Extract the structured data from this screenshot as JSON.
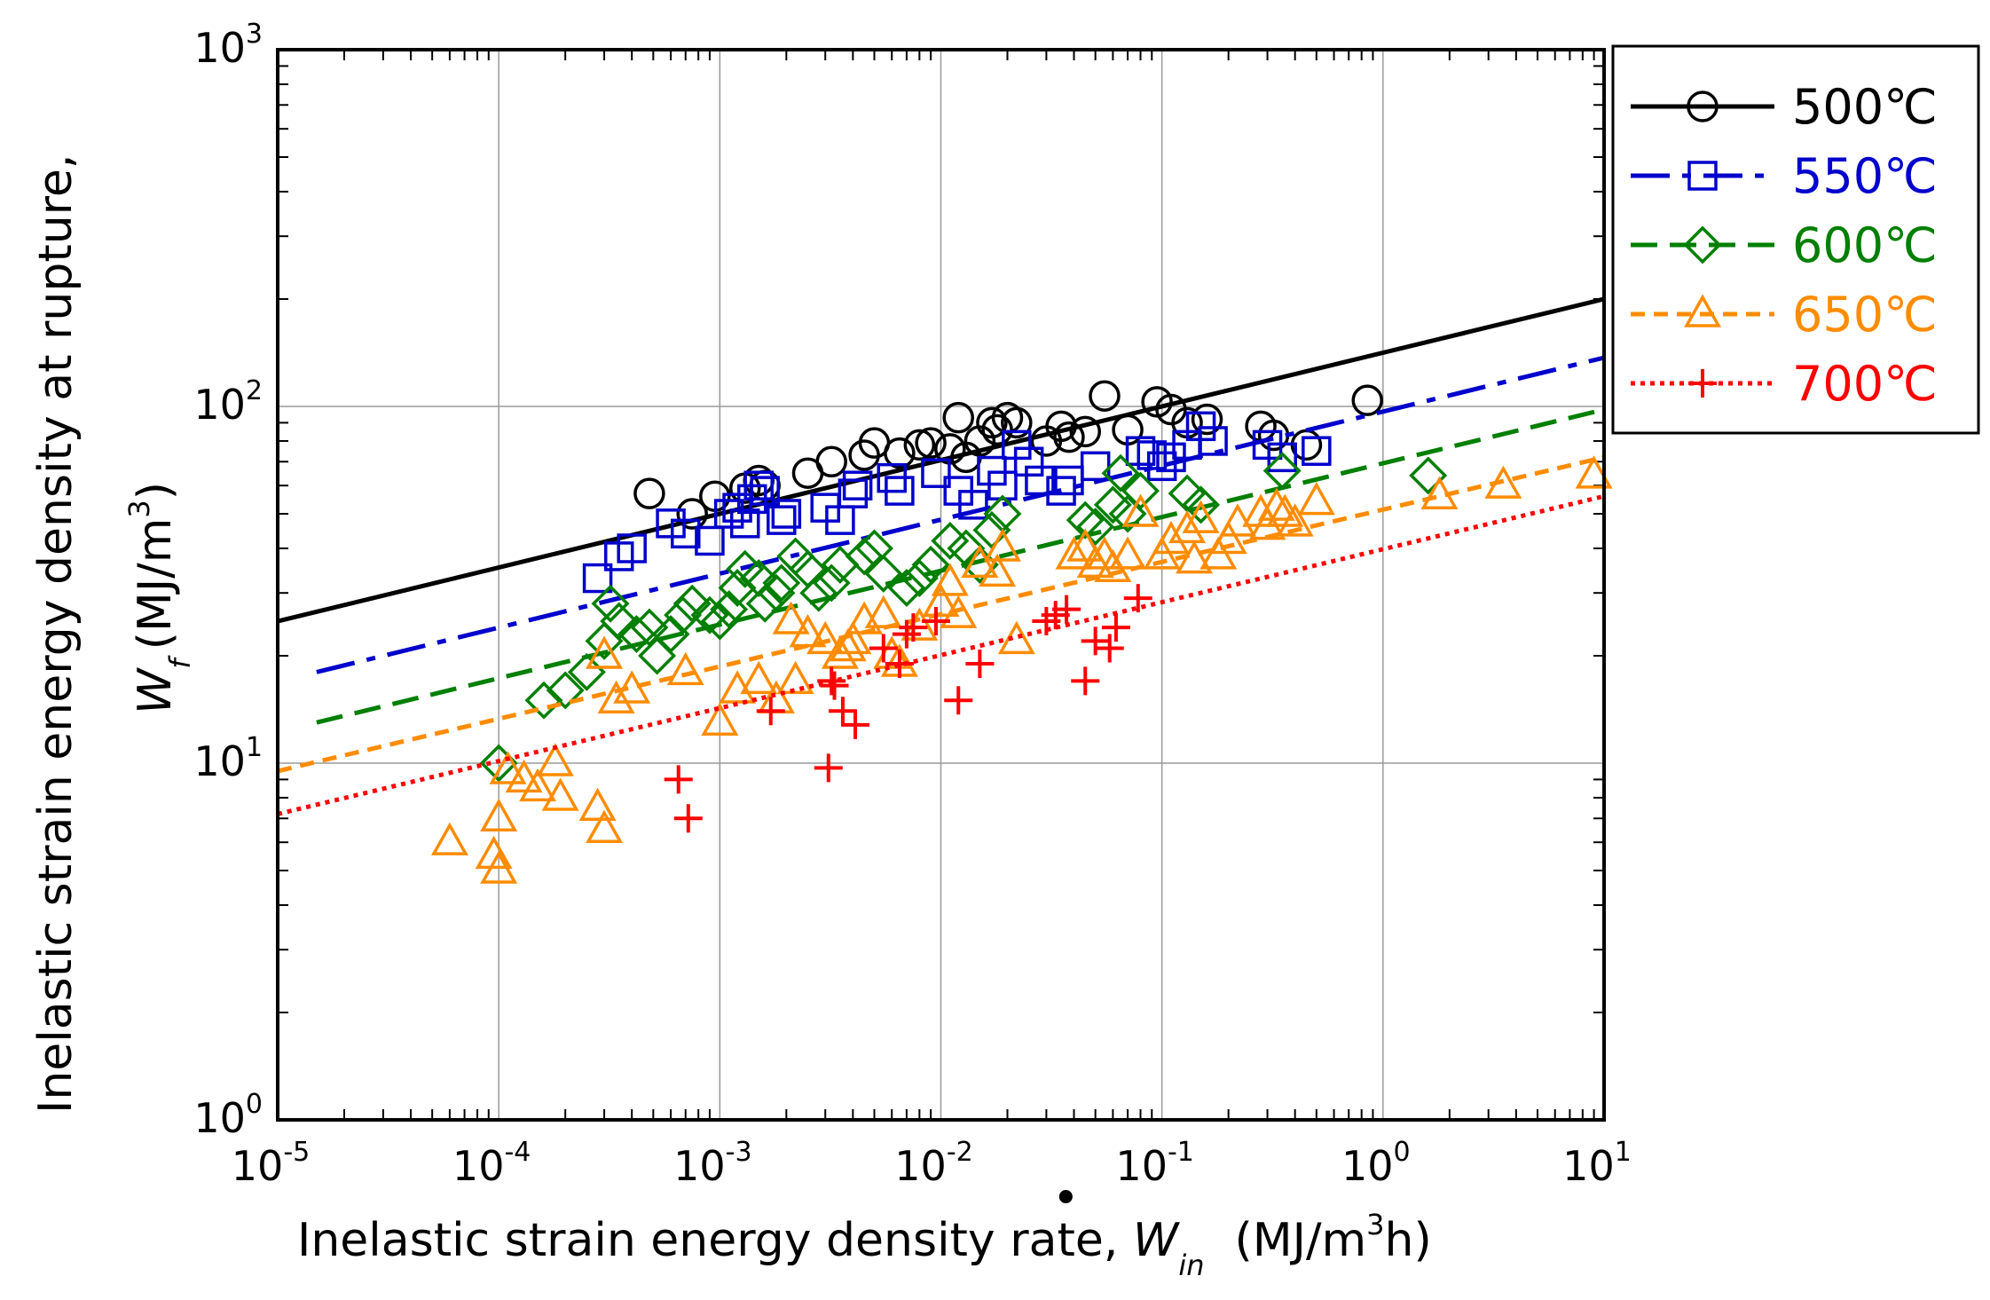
{
  "chart_data": {
    "type": "scatter",
    "xscale": "log",
    "yscale": "log",
    "xlim": [
      1e-05,
      10
    ],
    "ylim": [
      1,
      1000
    ],
    "grid": true,
    "legend_position": "outside-top-right",
    "x_ticks": [
      {
        "base": "10",
        "exp": "-5"
      },
      {
        "base": "10",
        "exp": "-4"
      },
      {
        "base": "10",
        "exp": "-3"
      },
      {
        "base": "10",
        "exp": "-2"
      },
      {
        "base": "10",
        "exp": "-1"
      },
      {
        "base": "10",
        "exp": "0"
      },
      {
        "base": "10",
        "exp": "1"
      }
    ],
    "y_ticks": [
      {
        "base": "10",
        "exp": "0"
      },
      {
        "base": "10",
        "exp": "1"
      },
      {
        "base": "10",
        "exp": "2"
      },
      {
        "base": "10",
        "exp": "3"
      }
    ],
    "xlabel": {
      "main": "Inelastic strain energy density rate, ",
      "symbol": "W",
      "sub": "in",
      "unit_pre": "(MJ/m",
      "unit_sup": "3",
      "unit_post": "h)"
    },
    "ylabel": {
      "line1": "Inelastic strain energy density at rupture,",
      "symbol": "W",
      "sub": "f",
      "unit_pre": "(MJ/m",
      "unit_sup": "3",
      "unit_post": ")"
    },
    "series": [
      {
        "name": "500℃",
        "color": "#000000",
        "marker": "circle",
        "line_style": "solid",
        "fit": {
          "x": [
            1e-05,
            10
          ],
          "y": [
            25,
            200
          ]
        },
        "points": [
          [
            0.00048,
            57
          ],
          [
            0.00075,
            50
          ],
          [
            0.00095,
            56
          ],
          [
            0.0013,
            59
          ],
          [
            0.0015,
            62
          ],
          [
            0.0016,
            60
          ],
          [
            0.0025,
            65
          ],
          [
            0.0032,
            70
          ],
          [
            0.0045,
            73
          ],
          [
            0.005,
            79
          ],
          [
            0.0065,
            74
          ],
          [
            0.008,
            78
          ],
          [
            0.009,
            79
          ],
          [
            0.011,
            76
          ],
          [
            0.012,
            93
          ],
          [
            0.013,
            72
          ],
          [
            0.015,
            80
          ],
          [
            0.017,
            90
          ],
          [
            0.018,
            86
          ],
          [
            0.02,
            93
          ],
          [
            0.022,
            90
          ],
          [
            0.03,
            80
          ],
          [
            0.035,
            88
          ],
          [
            0.038,
            82
          ],
          [
            0.045,
            85
          ],
          [
            0.055,
            107
          ],
          [
            0.07,
            86
          ],
          [
            0.095,
            103
          ],
          [
            0.11,
            98
          ],
          [
            0.13,
            90
          ],
          [
            0.16,
            92
          ],
          [
            0.28,
            88
          ],
          [
            0.32,
            83
          ],
          [
            0.45,
            78
          ],
          [
            0.85,
            104
          ]
        ]
      },
      {
        "name": "550℃",
        "color": "#0000cc",
        "marker": "square",
        "line_style": "dashdot",
        "fit": {
          "x": [
            1.5e-05,
            10
          ],
          "y": [
            18,
            137
          ]
        },
        "points": [
          [
            0.00028,
            33
          ],
          [
            0.00035,
            38
          ],
          [
            0.0004,
            40
          ],
          [
            0.0006,
            47
          ],
          [
            0.0007,
            44
          ],
          [
            0.0009,
            42
          ],
          [
            0.0011,
            50
          ],
          [
            0.0012,
            52
          ],
          [
            0.0013,
            47
          ],
          [
            0.0014,
            55
          ],
          [
            0.0015,
            60
          ],
          [
            0.0016,
            58
          ],
          [
            0.0019,
            48
          ],
          [
            0.002,
            50
          ],
          [
            0.003,
            52
          ],
          [
            0.0035,
            48
          ],
          [
            0.004,
            57
          ],
          [
            0.0042,
            60
          ],
          [
            0.006,
            63
          ],
          [
            0.0065,
            58
          ],
          [
            0.0095,
            65
          ],
          [
            0.012,
            58
          ],
          [
            0.014,
            53
          ],
          [
            0.017,
            66
          ],
          [
            0.019,
            60
          ],
          [
            0.022,
            78
          ],
          [
            0.025,
            70
          ],
          [
            0.028,
            62
          ],
          [
            0.035,
            58
          ],
          [
            0.038,
            62
          ],
          [
            0.05,
            68
          ],
          [
            0.08,
            75
          ],
          [
            0.09,
            73
          ],
          [
            0.1,
            68
          ],
          [
            0.11,
            72
          ],
          [
            0.13,
            78
          ],
          [
            0.15,
            88
          ],
          [
            0.17,
            80
          ],
          [
            0.3,
            78
          ],
          [
            0.35,
            72
          ],
          [
            0.5,
            75
          ]
        ]
      },
      {
        "name": "600℃",
        "color": "#007f00",
        "marker": "diamond",
        "line_style": "dashed",
        "fit": {
          "x": [
            1.5e-05,
            10
          ],
          "y": [
            13,
            98
          ]
        },
        "points": [
          [
            0.0001,
            10
          ],
          [
            0.00016,
            15
          ],
          [
            0.0002,
            16
          ],
          [
            0.00025,
            18
          ],
          [
            0.0003,
            22
          ],
          [
            0.00032,
            28
          ],
          [
            0.00035,
            25
          ],
          [
            0.00042,
            23
          ],
          [
            0.00048,
            24
          ],
          [
            0.00052,
            20
          ],
          [
            0.0006,
            23
          ],
          [
            0.00068,
            26
          ],
          [
            0.00075,
            28
          ],
          [
            0.0009,
            26
          ],
          [
            0.001,
            25
          ],
          [
            0.0011,
            27
          ],
          [
            0.0012,
            31
          ],
          [
            0.0013,
            35
          ],
          [
            0.0015,
            33
          ],
          [
            0.0016,
            28
          ],
          [
            0.0018,
            30
          ],
          [
            0.0019,
            32
          ],
          [
            0.0022,
            38
          ],
          [
            0.0025,
            35
          ],
          [
            0.0028,
            30
          ],
          [
            0.0032,
            32
          ],
          [
            0.0035,
            36
          ],
          [
            0.0045,
            38
          ],
          [
            0.005,
            40
          ],
          [
            0.0055,
            34
          ],
          [
            0.007,
            31
          ],
          [
            0.008,
            33
          ],
          [
            0.009,
            36
          ],
          [
            0.011,
            42
          ],
          [
            0.013,
            40
          ],
          [
            0.015,
            36
          ],
          [
            0.017,
            45
          ],
          [
            0.019,
            50
          ],
          [
            0.045,
            48
          ],
          [
            0.05,
            46
          ],
          [
            0.06,
            53
          ],
          [
            0.065,
            65
          ],
          [
            0.07,
            50
          ],
          [
            0.08,
            58
          ],
          [
            0.13,
            57
          ],
          [
            0.15,
            53
          ],
          [
            0.35,
            66
          ],
          [
            1.6,
            64
          ]
        ]
      },
      {
        "name": "650℃",
        "color": "#ff8c00",
        "marker": "triangle",
        "line_style": "short-dashed",
        "fit": {
          "x": [
            1e-05,
            10
          ],
          "y": [
            9.5,
            72
          ]
        },
        "points": [
          [
            6e-05,
            6
          ],
          [
            9.5e-05,
            5.5
          ],
          [
            0.0001,
            7
          ],
          [
            0.0001,
            5
          ],
          [
            0.00011,
            9.5
          ],
          [
            0.00013,
            9
          ],
          [
            0.00015,
            8.5
          ],
          [
            0.00018,
            10
          ],
          [
            0.00019,
            8
          ],
          [
            0.00028,
            7.5
          ],
          [
            0.0003,
            6.5
          ],
          [
            0.0003,
            20
          ],
          [
            0.00034,
            15
          ],
          [
            0.0004,
            16
          ],
          [
            0.0007,
            18
          ],
          [
            0.001,
            13
          ],
          [
            0.0012,
            16
          ],
          [
            0.0015,
            17
          ],
          [
            0.0018,
            15
          ],
          [
            0.0021,
            25
          ],
          [
            0.0022,
            17
          ],
          [
            0.0025,
            23
          ],
          [
            0.003,
            22
          ],
          [
            0.0035,
            20
          ],
          [
            0.0038,
            21
          ],
          [
            0.004,
            22
          ],
          [
            0.0045,
            25
          ],
          [
            0.0055,
            26
          ],
          [
            0.006,
            20
          ],
          [
            0.0065,
            19
          ],
          [
            0.008,
            24
          ],
          [
            0.01,
            28
          ],
          [
            0.011,
            32
          ],
          [
            0.012,
            26
          ],
          [
            0.015,
            36
          ],
          [
            0.018,
            34
          ],
          [
            0.019,
            40
          ],
          [
            0.022,
            22
          ],
          [
            0.04,
            38
          ],
          [
            0.045,
            40
          ],
          [
            0.05,
            36
          ],
          [
            0.055,
            38
          ],
          [
            0.06,
            35
          ],
          [
            0.07,
            38
          ],
          [
            0.08,
            50
          ],
          [
            0.1,
            38
          ],
          [
            0.11,
            42
          ],
          [
            0.13,
            45
          ],
          [
            0.14,
            37
          ],
          [
            0.15,
            48
          ],
          [
            0.18,
            38
          ],
          [
            0.2,
            42
          ],
          [
            0.22,
            47
          ],
          [
            0.28,
            50
          ],
          [
            0.3,
            46
          ],
          [
            0.33,
            52
          ],
          [
            0.36,
            50
          ],
          [
            0.4,
            47
          ],
          [
            0.5,
            54
          ],
          [
            1.8,
            56
          ],
          [
            3.5,
            60
          ],
          [
            9,
            64
          ]
        ]
      },
      {
        "name": "700℃",
        "color": "#ff0000",
        "marker": "plus",
        "line_style": "dotted",
        "fit": {
          "x": [
            1e-05,
            10
          ],
          "y": [
            7.2,
            56
          ]
        },
        "points": [
          [
            0.00065,
            9
          ],
          [
            0.00072,
            7
          ],
          [
            0.0017,
            14
          ],
          [
            0.0031,
            9.7
          ],
          [
            0.0032,
            17
          ],
          [
            0.0033,
            16.5
          ],
          [
            0.0036,
            14
          ],
          [
            0.0041,
            12.8
          ],
          [
            0.0055,
            21
          ],
          [
            0.0065,
            19
          ],
          [
            0.007,
            23
          ],
          [
            0.0075,
            24
          ],
          [
            0.0095,
            25
          ],
          [
            0.012,
            15
          ],
          [
            0.015,
            19
          ],
          [
            0.03,
            25
          ],
          [
            0.033,
            26
          ],
          [
            0.037,
            27
          ],
          [
            0.045,
            17
          ],
          [
            0.05,
            22
          ],
          [
            0.058,
            21
          ],
          [
            0.062,
            24
          ],
          [
            0.078,
            29
          ]
        ]
      }
    ]
  }
}
